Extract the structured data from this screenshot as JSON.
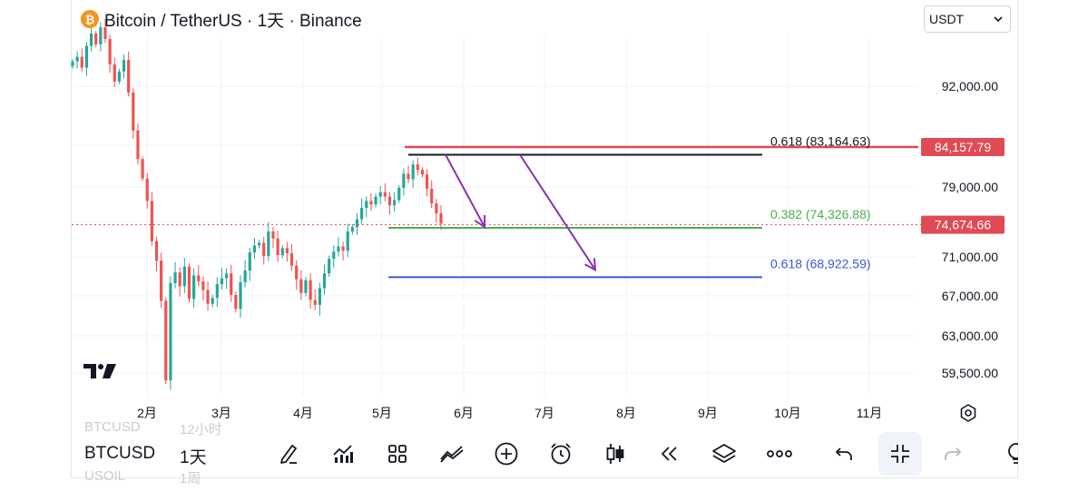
{
  "header": {
    "title": "Bitcoin / TetherUS · 1天 · Binance",
    "currency_select": "USDT",
    "btc_glyph": "₿"
  },
  "colors": {
    "up": "#26a69a",
    "down": "#ef5350",
    "resistance": "#e04a55",
    "black_line": "#131722",
    "green_line": "#4caf50",
    "blue_line": "#3a57d8",
    "arrow": "#8e2fb6"
  },
  "chart_data": {
    "type": "candlestick",
    "title": "Bitcoin / TetherUS · 1天 · Binance",
    "y_ticks": [
      "92,000.00",
      "79,000.00",
      "71,000.00",
      "67,000.00",
      "63,000.00",
      "59,500.00"
    ],
    "x_ticks": [
      "2月",
      "3月",
      "4月",
      "5月",
      "6月",
      "7月",
      "8月",
      "9月",
      "10月",
      "11月"
    ],
    "price_badges": [
      {
        "value": "84,157.79",
        "color": "#e04a55"
      },
      {
        "value": "74,674.66",
        "color": "#e04a55"
      }
    ],
    "levels": [
      {
        "label": "0.618 (83,164.63)",
        "value": 83164.63,
        "color": "#131722"
      },
      {
        "label": "0.382 (74,326.88)",
        "value": 74326.88,
        "color": "#4caf50"
      },
      {
        "label": "0.618 (68,922.59)",
        "value": 68922.59,
        "color": "#3a57d8"
      }
    ],
    "resistance_level": 84157.79,
    "last_price": 74674.66,
    "closes_sampled": [
      95200,
      95800,
      94400,
      97200,
      98800,
      97400,
      99600,
      98100,
      94800,
      92600,
      93900,
      95400,
      91200,
      86300,
      82600,
      80100,
      77400,
      72800,
      70600,
      66500,
      58800,
      68300,
      69400,
      68000,
      70000,
      66700,
      69100,
      68500,
      67600,
      66200,
      66800,
      68200,
      68800,
      69300,
      67100,
      65700,
      68400,
      69600,
      71500,
      72300,
      72600,
      71100,
      73900,
      73100,
      71200,
      72000,
      71400,
      70100,
      68700,
      67300,
      68600,
      66600,
      66100,
      67800,
      69300,
      70800,
      71600,
      72200,
      71700,
      73900,
      74400,
      75300,
      76600,
      77400,
      77000,
      77900,
      78400,
      77900,
      76900,
      77500,
      78900,
      80700,
      80000,
      81900,
      81200,
      80600,
      78800,
      77100,
      76000,
      74800
    ]
  },
  "bottom_bar": {
    "ghost_top_symbol": "BTCUSD",
    "ghost_top_tf": "12小时",
    "symbol": "BTCUSD",
    "timeframe": "1天",
    "ghost_bottom_symbol": "USOIL",
    "ghost_bottom_tf": "1周"
  }
}
